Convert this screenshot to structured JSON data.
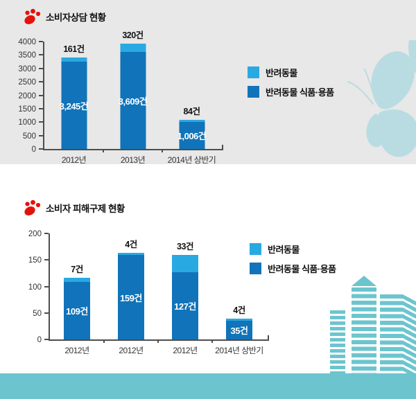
{
  "colors": {
    "light_blue": "#29a9e1",
    "dark_blue": "#1173b9",
    "teal_decoration": "#6cc5ce",
    "butterfly_blue": "#b9dce2",
    "paw_red": "#e3120b",
    "panel_gray": "#e8e8e8",
    "axis_gray": "#4d4d4d"
  },
  "icons": {
    "title_marker": "paw-print-icon"
  },
  "chart_data": [
    {
      "type": "bar",
      "stacked": true,
      "title": "소비자상담 현황",
      "categories": [
        "2012년",
        "2013년",
        "2014년 상반기"
      ],
      "series": [
        {
          "name": "반려동물",
          "color": "#29a9e1",
          "values": [
            161,
            320,
            84
          ],
          "labels": [
            "161건",
            "320건",
            "84건"
          ],
          "label_position": "above"
        },
        {
          "name": "반려동물 식품·용품",
          "color": "#1173b9",
          "values": [
            3245,
            3609,
            1006
          ],
          "labels": [
            "3,245건",
            "3,609건",
            "1,006건"
          ],
          "label_position": "inside"
        }
      ],
      "ylim": [
        0,
        4000
      ],
      "ytick_step": 500,
      "yticks": [
        "0",
        "500",
        "1000",
        "1500",
        "2000",
        "2500",
        "3000",
        "3500",
        "4000"
      ],
      "legend_position": "right",
      "grid": false
    },
    {
      "type": "bar",
      "stacked": true,
      "title": "소비자 피해구제 현황",
      "categories": [
        "2012년",
        "2012년",
        "2012년",
        "2014년 상반기"
      ],
      "series": [
        {
          "name": "반려동물",
          "color": "#29a9e1",
          "values": [
            7,
            4,
            33,
            4
          ],
          "labels": [
            "7건",
            "4건",
            "33건",
            "4건"
          ],
          "label_position": "above"
        },
        {
          "name": "반려동물 식품·용품",
          "color": "#1173b9",
          "values": [
            109,
            159,
            127,
            35
          ],
          "labels": [
            "109건",
            "159건",
            "127건",
            "35건"
          ],
          "label_position": "inside"
        }
      ],
      "ylim": [
        0,
        200
      ],
      "ytick_step": 50,
      "yticks": [
        "0",
        "50",
        "100",
        "150",
        "200"
      ],
      "legend_position": "right",
      "grid": false
    }
  ]
}
